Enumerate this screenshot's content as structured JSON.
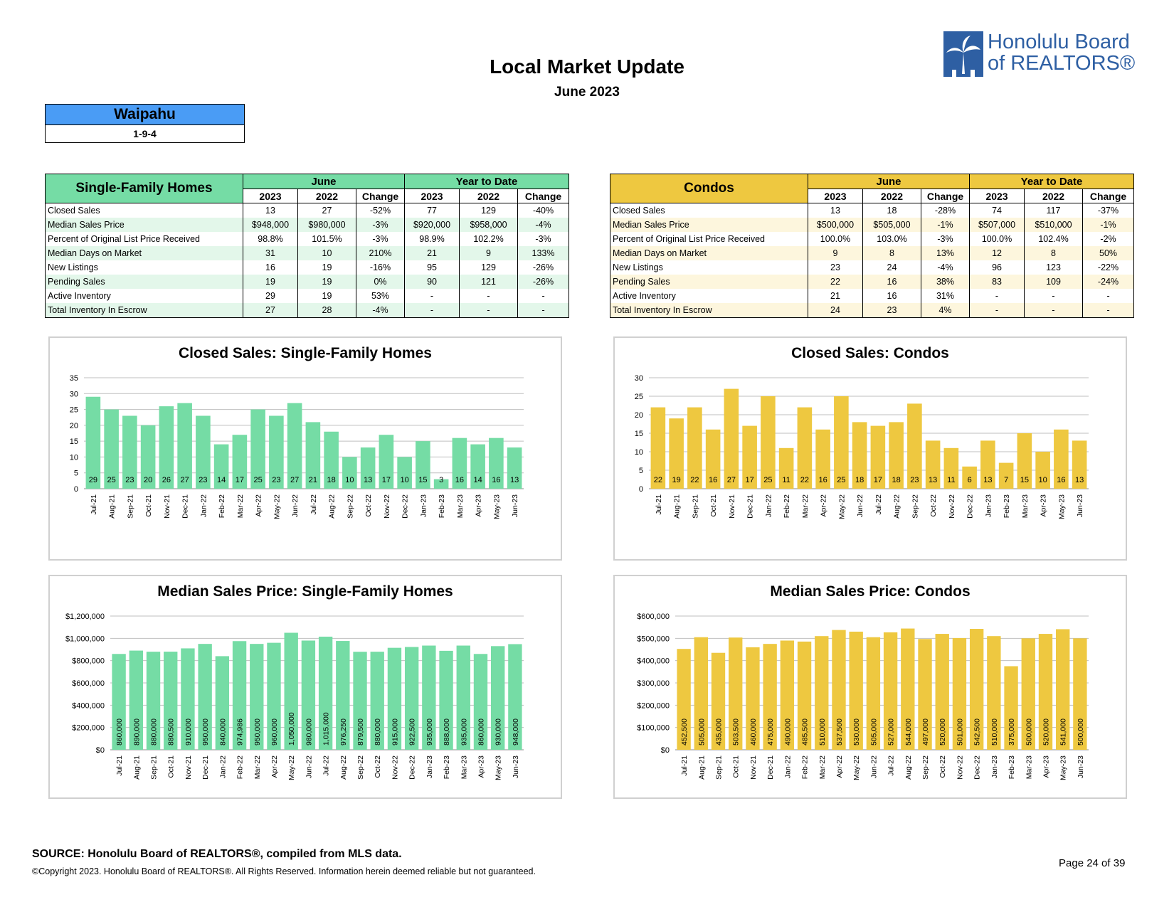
{
  "header": {
    "title": "Local Market Update",
    "subtitle": "June 2023"
  },
  "logo": {
    "line1": "Honolulu Board",
    "line2": "of REALTORS®",
    "brand_color": "#2e5fa3"
  },
  "area": {
    "name": "Waipahu",
    "code": "1-9-4"
  },
  "sfh_table": {
    "title": "Single-Family Homes",
    "group_june": "June",
    "group_ytd": "Year to Date",
    "years": [
      "2023",
      "2022",
      "Change",
      "2023",
      "2022",
      "Change"
    ],
    "rows": [
      {
        "label": "Closed Sales",
        "values": [
          "13",
          "27",
          "-52%",
          "77",
          "129",
          "-40%"
        ]
      },
      {
        "label": "Median Sales Price",
        "values": [
          "$948,000",
          "$980,000",
          "-3%",
          "$920,000",
          "$958,000",
          "-4%"
        ]
      },
      {
        "label": "Percent of Original List Price Received",
        "values": [
          "98.8%",
          "101.5%",
          "-3%",
          "98.9%",
          "102.2%",
          "-3%"
        ]
      },
      {
        "label": "Median Days on Market",
        "values": [
          "31",
          "10",
          "210%",
          "21",
          "9",
          "133%"
        ]
      },
      {
        "label": "New Listings",
        "values": [
          "16",
          "19",
          "-16%",
          "95",
          "129",
          "-26%"
        ]
      },
      {
        "label": "Pending Sales",
        "values": [
          "19",
          "19",
          "0%",
          "90",
          "121",
          "-26%"
        ]
      },
      {
        "label": "Active Inventory",
        "values": [
          "29",
          "19",
          "53%",
          "-",
          "-",
          "-"
        ]
      },
      {
        "label": "Total Inventory In Escrow",
        "values": [
          "27",
          "28",
          "-4%",
          "-",
          "-",
          "-"
        ]
      }
    ],
    "header_color": "#75dca5",
    "stripe_color": "#e3f7ea"
  },
  "condo_table": {
    "title": "Condos",
    "group_june": "June",
    "group_ytd": "Year to Date",
    "years": [
      "2023",
      "2022",
      "Change",
      "2023",
      "2022",
      "Change"
    ],
    "rows": [
      {
        "label": "Closed Sales",
        "values": [
          "13",
          "18",
          "-28%",
          "74",
          "117",
          "-37%"
        ]
      },
      {
        "label": "Median Sales Price",
        "values": [
          "$500,000",
          "$505,000",
          "-1%",
          "$507,000",
          "$510,000",
          "-1%"
        ]
      },
      {
        "label": "Percent of Original List Price Received",
        "values": [
          "100.0%",
          "103.0%",
          "-3%",
          "100.0%",
          "102.4%",
          "-2%"
        ]
      },
      {
        "label": "Median Days on Market",
        "values": [
          "9",
          "8",
          "13%",
          "12",
          "8",
          "50%"
        ]
      },
      {
        "label": "New Listings",
        "values": [
          "23",
          "24",
          "-4%",
          "96",
          "123",
          "-22%"
        ]
      },
      {
        "label": "Pending Sales",
        "values": [
          "22",
          "16",
          "38%",
          "83",
          "109",
          "-24%"
        ]
      },
      {
        "label": "Active Inventory",
        "values": [
          "21",
          "16",
          "31%",
          "-",
          "-",
          "-"
        ]
      },
      {
        "label": "Total Inventory In Escrow",
        "values": [
          "24",
          "23",
          "4%",
          "-",
          "-",
          "-"
        ]
      }
    ],
    "header_color": "#eec840",
    "stripe_color": "#fdf6dd"
  },
  "chart_data": [
    {
      "id": "sfh_closed",
      "type": "bar",
      "title": "Closed Sales: Single-Family Homes",
      "categories": [
        "Jul-21",
        "Aug-21",
        "Sep-21",
        "Oct-21",
        "Nov-21",
        "Dec-21",
        "Jan-22",
        "Feb-22",
        "Mar-22",
        "Apr-22",
        "May-22",
        "Jun-22",
        "Jul-22",
        "Aug-22",
        "Sep-22",
        "Oct-22",
        "Nov-22",
        "Dec-22",
        "Jan-23",
        "Feb-23",
        "Mar-23",
        "Apr-23",
        "May-23",
        "Jun-23"
      ],
      "values": [
        29,
        25,
        23,
        20,
        26,
        27,
        23,
        14,
        17,
        25,
        23,
        27,
        21,
        18,
        10,
        13,
        17,
        10,
        15,
        3,
        16,
        14,
        16,
        13
      ],
      "data_labels": [
        "29",
        "25",
        "23",
        "20",
        "26",
        "27",
        "23",
        "14",
        "17",
        "25",
        "23",
        "27",
        "21",
        "18",
        "10",
        "13",
        "17",
        "10",
        "15",
        "3",
        "16",
        "14",
        "16",
        "13"
      ],
      "ylim": [
        0,
        35
      ],
      "yticks": [
        0,
        5,
        10,
        15,
        20,
        25,
        30,
        35
      ],
      "ytick_labels": [
        "0",
        "5",
        "10",
        "15",
        "20",
        "25",
        "30",
        "35"
      ],
      "color": "#75dca5",
      "label_style": "horizontal"
    },
    {
      "id": "condo_closed",
      "type": "bar",
      "title": "Closed Sales: Condos",
      "categories": [
        "Jul-21",
        "Aug-21",
        "Sep-21",
        "Oct-21",
        "Nov-21",
        "Dec-21",
        "Jan-22",
        "Feb-22",
        "Mar-22",
        "Apr-22",
        "May-22",
        "Jun-22",
        "Jul-22",
        "Aug-22",
        "Sep-22",
        "Oct-22",
        "Nov-22",
        "Dec-22",
        "Jan-23",
        "Feb-23",
        "Mar-23",
        "Apr-23",
        "May-23",
        "Jun-23"
      ],
      "values": [
        22,
        19,
        22,
        16,
        27,
        17,
        25,
        11,
        22,
        16,
        25,
        18,
        17,
        18,
        23,
        13,
        11,
        6,
        13,
        7,
        15,
        10,
        16,
        13
      ],
      "data_labels": [
        "22",
        "19",
        "22",
        "16",
        "27",
        "17",
        "25",
        "11",
        "22",
        "16",
        "25",
        "18",
        "17",
        "18",
        "23",
        "13",
        "11",
        "6",
        "13",
        "7",
        "15",
        "10",
        "16",
        "13"
      ],
      "ylim": [
        0,
        30
      ],
      "yticks": [
        0,
        5,
        10,
        15,
        20,
        25,
        30
      ],
      "ytick_labels": [
        "0",
        "5",
        "10",
        "15",
        "20",
        "25",
        "30"
      ],
      "color": "#eec840",
      "label_style": "horizontal"
    },
    {
      "id": "sfh_price",
      "type": "bar",
      "title": "Median Sales Price: Single-Family Homes",
      "categories": [
        "Jul-21",
        "Aug-21",
        "Sep-21",
        "Oct-21",
        "Nov-21",
        "Dec-21",
        "Jan-22",
        "Feb-22",
        "Mar-22",
        "Apr-22",
        "May-22",
        "Jun-22",
        "Jul-22",
        "Aug-22",
        "Sep-22",
        "Oct-22",
        "Nov-22",
        "Dec-22",
        "Jan-23",
        "Feb-23",
        "Mar-23",
        "Apr-23",
        "May-23",
        "Jun-23"
      ],
      "values": [
        860000,
        890000,
        880000,
        880500,
        910000,
        950000,
        840000,
        974986,
        950000,
        960000,
        1050000,
        980000,
        1015000,
        976250,
        879500,
        880000,
        915000,
        922500,
        935000,
        888000,
        935000,
        860000,
        930000,
        948000
      ],
      "data_labels": [
        "860,000",
        "890,000",
        "880,000",
        "880,500",
        "910,000",
        "950,000",
        "840,000",
        "974,986",
        "950,000",
        "960,000",
        "1,050,000",
        "980,000",
        "1,015,000",
        "976,250",
        "879,500",
        "880,000",
        "915,000",
        "922,500",
        "935,000",
        "888,000",
        "935,000",
        "860,000",
        "930,000",
        "948,000"
      ],
      "ylim": [
        0,
        1200000
      ],
      "yticks": [
        0,
        200000,
        400000,
        600000,
        800000,
        1000000,
        1200000
      ],
      "ytick_labels": [
        "$0",
        "$200,000",
        "$400,000",
        "$600,000",
        "$800,000",
        "$1,000,000",
        "$1,200,000"
      ],
      "color": "#75dca5",
      "label_style": "vertical"
    },
    {
      "id": "condo_price",
      "type": "bar",
      "title": "Median Sales Price: Condos",
      "categories": [
        "Jul-21",
        "Aug-21",
        "Sep-21",
        "Oct-21",
        "Nov-21",
        "Dec-21",
        "Jan-22",
        "Feb-22",
        "Mar-22",
        "Apr-22",
        "May-22",
        "Jun-22",
        "Jul-22",
        "Aug-22",
        "Sep-22",
        "Oct-22",
        "Nov-22",
        "Dec-22",
        "Jan-23",
        "Feb-23",
        "Mar-23",
        "Apr-23",
        "May-23",
        "Jun-23"
      ],
      "values": [
        452500,
        505000,
        435000,
        503500,
        460000,
        475000,
        490000,
        485500,
        510000,
        537500,
        530000,
        505000,
        527000,
        544000,
        497000,
        520000,
        501000,
        542500,
        510000,
        375000,
        500000,
        520000,
        541000,
        500000
      ],
      "data_labels": [
        "452,500",
        "505,000",
        "435,000",
        "503,500",
        "460,000",
        "475,000",
        "490,000",
        "485,500",
        "510,000",
        "537,500",
        "530,000",
        "505,000",
        "527,000",
        "544,000",
        "497,000",
        "520,000",
        "501,000",
        "542,500",
        "510,000",
        "375,000",
        "500,000",
        "520,000",
        "541,000",
        "500,000"
      ],
      "ylim": [
        0,
        600000
      ],
      "yticks": [
        0,
        100000,
        200000,
        300000,
        400000,
        500000,
        600000
      ],
      "ytick_labels": [
        "$0",
        "$100,000",
        "$200,000",
        "$300,000",
        "$400,000",
        "$500,000",
        "$600,000"
      ],
      "color": "#eec840",
      "label_style": "vertical"
    }
  ],
  "footer": {
    "source": "SOURCE: Honolulu Board of REALTORS®, compiled from MLS data.",
    "copyright": "©Copyright 2023. Honolulu Board of REALTORS®. All Rights Reserved. Information herein deemed reliable but not guaranteed.",
    "page": "Page 24 of 39"
  }
}
